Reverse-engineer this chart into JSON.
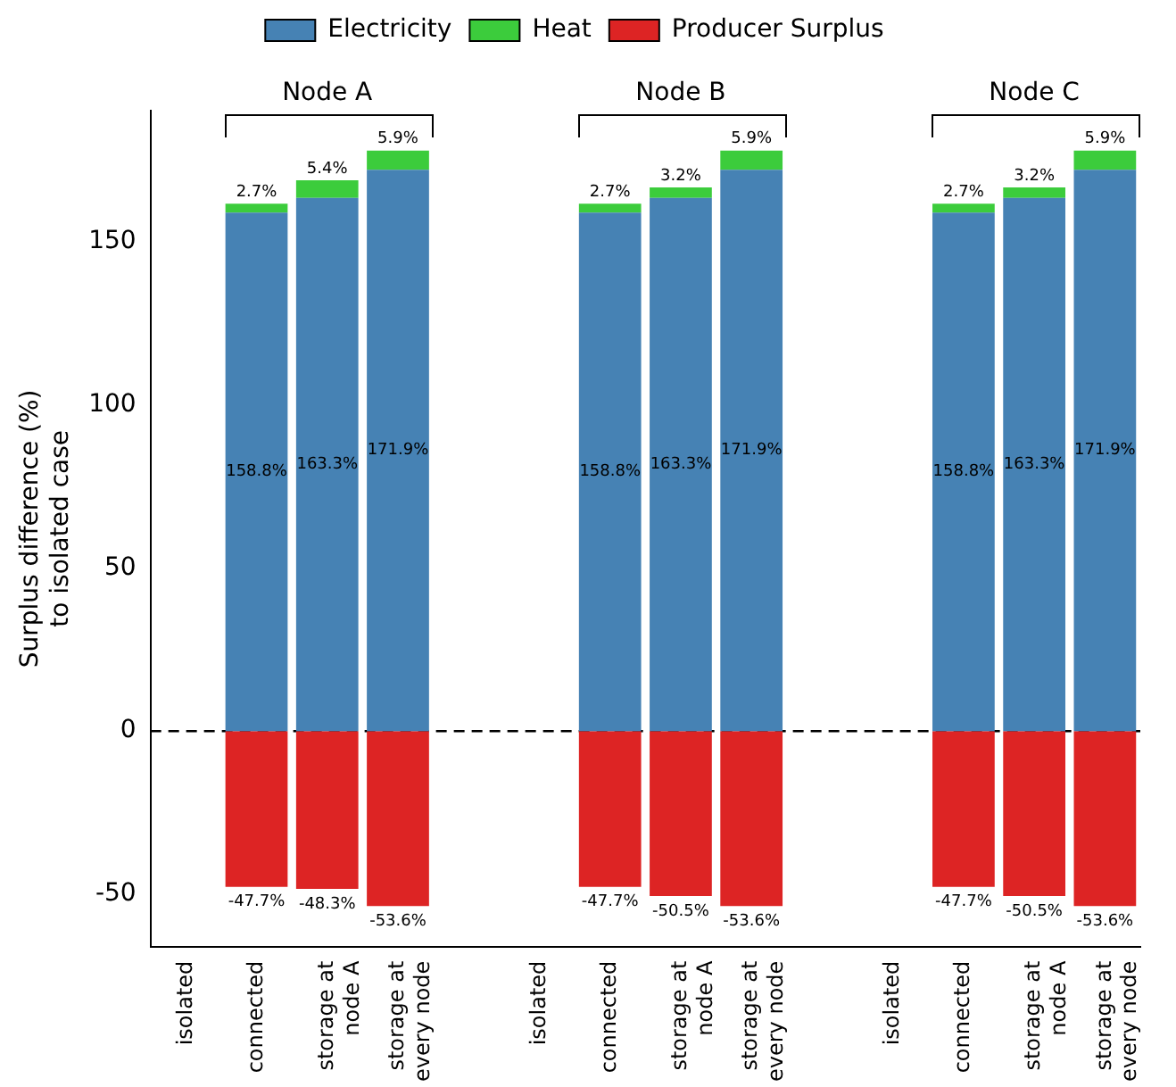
{
  "chart_data": {
    "type": "bar",
    "stacked": true,
    "ylabel": "Surplus difference (%)\nto isolated case",
    "categories": [
      "isolated",
      "connected",
      "storage at\nnode A",
      "storage at\nevery node",
      null,
      "isolated",
      "connected",
      "storage at\nnode A",
      "storage at\nevery node",
      null,
      "isolated",
      "connected",
      "storage at\nnode A",
      "storage at\nevery node"
    ],
    "series": [
      {
        "name": "Electricity",
        "color": "#4682b4",
        "values": [
          null,
          158.8,
          163.3,
          171.9,
          null,
          null,
          158.8,
          163.3,
          171.9,
          null,
          null,
          158.8,
          163.3,
          171.9
        ],
        "value_labels": [
          null,
          "158.8%",
          "163.3%",
          "171.9%",
          null,
          null,
          "158.8%",
          "163.3%",
          "171.9%",
          null,
          null,
          "158.8%",
          "163.3%",
          "171.9%"
        ]
      },
      {
        "name": "Heat",
        "color": "#3ccc3c",
        "values": [
          null,
          2.7,
          5.4,
          5.9,
          null,
          null,
          2.7,
          3.2,
          5.9,
          null,
          null,
          2.7,
          3.2,
          5.9
        ],
        "value_labels": [
          null,
          "2.7%",
          "5.4%",
          "5.9%",
          null,
          null,
          "2.7%",
          "3.2%",
          "5.9%",
          null,
          null,
          "2.7%",
          "3.2%",
          "5.9%"
        ]
      },
      {
        "name": "Producer Surplus",
        "color": "#dd2424",
        "values": [
          null,
          -47.7,
          -48.3,
          -53.6,
          null,
          null,
          -47.7,
          -50.5,
          -53.6,
          null,
          null,
          -47.7,
          -50.5,
          -53.6
        ],
        "value_labels": [
          null,
          "-47.7%",
          "-48.3%",
          "-53.6%",
          null,
          null,
          "-47.7%",
          "-50.5%",
          "-53.6%",
          null,
          null,
          "-47.7%",
          "-50.5%",
          "-53.6%"
        ]
      }
    ],
    "ylim": [
      -66,
      190
    ],
    "yticks": [
      -50,
      0,
      50,
      100,
      150
    ],
    "grid": false,
    "legend": "top",
    "ref_lines": [
      {
        "axis": "y",
        "value": 0,
        "color": "#000000",
        "line_style": "dashed"
      }
    ],
    "annotations": [
      "Node A",
      "Node B",
      "Node C"
    ]
  }
}
